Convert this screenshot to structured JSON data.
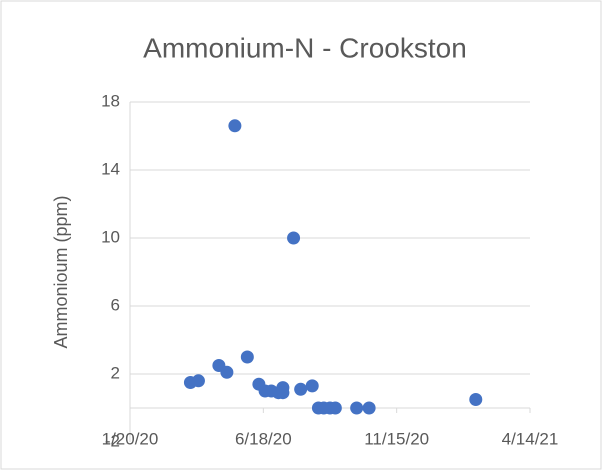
{
  "chart_data": {
    "type": "scatter",
    "title": "Ammonium-N - Crookston",
    "y_label": "Ammonioum (ppm)",
    "x": [
      "2020-03-28",
      "2020-04-06",
      "2020-04-29",
      "2020-05-08",
      "2020-05-17",
      "2020-05-31",
      "2020-06-13",
      "2020-06-20",
      "2020-06-27",
      "2020-07-05",
      "2020-07-10",
      "2020-07-10",
      "2020-07-22",
      "2020-07-30",
      "2020-08-12",
      "2020-08-19",
      "2020-08-25",
      "2020-09-01",
      "2020-09-07",
      "2020-10-01",
      "2020-10-15",
      "2021-02-12"
    ],
    "values": [
      1.5,
      1.6,
      2.5,
      2.1,
      16.6,
      3.0,
      1.4,
      1.0,
      1.0,
      0.9,
      1.2,
      0.9,
      10.0,
      1.1,
      1.3,
      0,
      0,
      0,
      0,
      0,
      0,
      0.5
    ],
    "color": "#4472c4",
    "xlim": [
      "2020-01-20",
      "2021-04-14"
    ],
    "xticks": [
      {
        "value": "2020-01-20",
        "label": "1/20/20"
      },
      {
        "value": "2020-06-18",
        "label": "6/18/20"
      },
      {
        "value": "2020-11-15",
        "label": "11/15/20"
      },
      {
        "value": "2021-04-14",
        "label": "4/14/21"
      }
    ],
    "ylim": [
      -2,
      18
    ],
    "yticks": [
      -2,
      2,
      6,
      10,
      14,
      18
    ],
    "grid": true
  }
}
